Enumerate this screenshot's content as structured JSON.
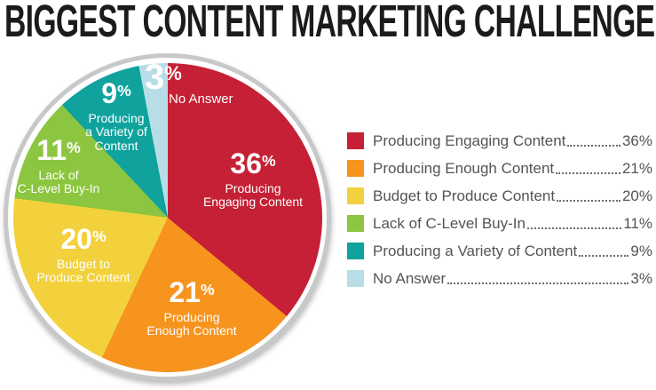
{
  "title": "BIGGEST CONTENT MARKETING CHALLENGE",
  "percent_sign": "%",
  "chart_data": {
    "type": "pie",
    "title": "BIGGEST CONTENT MARKETING CHALLENGE",
    "start_angle_deg": 0,
    "direction": "clockwise",
    "legend_position": "right",
    "outer_ring_color": "#c7c8ca",
    "slices": [
      {
        "label": "Producing Engaging Content",
        "value": 36,
        "value_label": "36%",
        "pct": "36",
        "lines": [
          "Producing",
          "Engaging Content"
        ],
        "color": "#C52035"
      },
      {
        "label": "Producing Enough Content",
        "value": 21,
        "value_label": "21%",
        "pct": "21",
        "lines": [
          "Producing",
          "Enough Content"
        ],
        "color": "#F7941E"
      },
      {
        "label": "Budget to Produce Content",
        "value": 20,
        "value_label": "20%",
        "pct": "20",
        "lines": [
          "Budget to",
          "Produce Content"
        ],
        "color": "#F2D13C"
      },
      {
        "label": "Lack of C-Level Buy-In",
        "value": 11,
        "value_label": "11%",
        "pct": "11",
        "lines": [
          "Lack of",
          "C-Level Buy-In"
        ],
        "color": "#8CC640"
      },
      {
        "label": "Producing a Variety of Content",
        "value": 9,
        "value_label": "9%",
        "pct": "9",
        "lines": [
          "Producing",
          "a Variety of",
          "Content"
        ],
        "color": "#10A39E"
      },
      {
        "label": "No Answer",
        "value": 3,
        "value_label": "3%",
        "pct": "3",
        "lines": [
          "No Answer"
        ],
        "color": "#B7DDE6"
      }
    ]
  }
}
